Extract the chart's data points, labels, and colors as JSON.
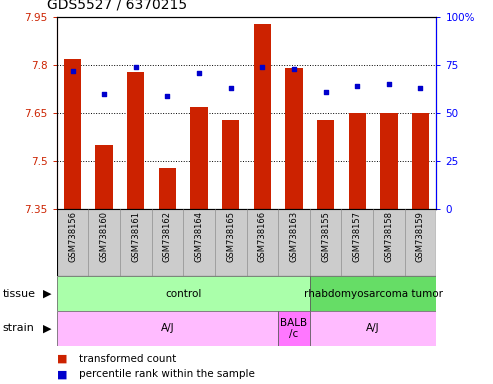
{
  "title": "GDS5527 / 6370215",
  "samples": [
    "GSM738156",
    "GSM738160",
    "GSM738161",
    "GSM738162",
    "GSM738164",
    "GSM738165",
    "GSM738166",
    "GSM738163",
    "GSM738155",
    "GSM738157",
    "GSM738158",
    "GSM738159"
  ],
  "transformed_count": [
    7.82,
    7.55,
    7.78,
    7.48,
    7.67,
    7.63,
    7.93,
    7.79,
    7.63,
    7.65,
    7.65,
    7.65
  ],
  "percentile_rank": [
    72,
    60,
    74,
    59,
    71,
    63,
    74,
    73,
    61,
    64,
    65,
    63
  ],
  "y_min": 7.35,
  "y_max": 7.95,
  "y_ticks": [
    7.35,
    7.5,
    7.65,
    7.8,
    7.95
  ],
  "y2_ticks": [
    0,
    25,
    50,
    75,
    100
  ],
  "bar_color": "#cc2200",
  "dot_color": "#0000cc",
  "tissue_groups": [
    {
      "label": "control",
      "start": 0,
      "end": 8,
      "color": "#aaffaa"
    },
    {
      "label": "rhabdomyosarcoma tumor",
      "start": 8,
      "end": 12,
      "color": "#66dd66"
    }
  ],
  "strain_groups": [
    {
      "label": "A/J",
      "start": 0,
      "end": 7,
      "color": "#ffbbff"
    },
    {
      "label": "BALB\n/c",
      "start": 7,
      "end": 8,
      "color": "#ff77ff"
    },
    {
      "label": "A/J",
      "start": 8,
      "end": 12,
      "color": "#ffbbff"
    }
  ],
  "tissue_label": "tissue",
  "strain_label": "strain",
  "legend_bar_label": "transformed count",
  "legend_dot_label": "percentile rank within the sample",
  "bar_color_legend": "#cc2200",
  "dot_color_legend": "#0000cc",
  "title_fontsize": 10,
  "tick_fontsize": 7.5,
  "label_fontsize": 7,
  "row_fontsize": 7.5
}
